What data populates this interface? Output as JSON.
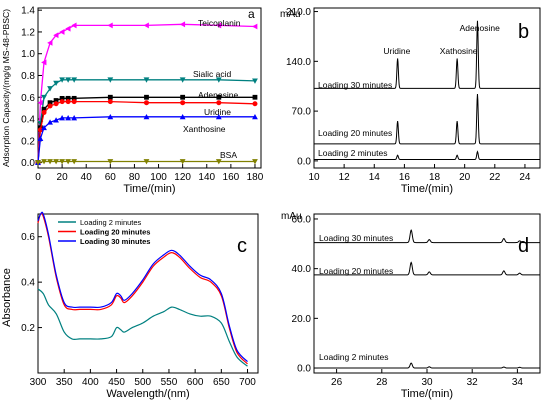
{
  "chart_data": [
    {
      "panel": "a",
      "type": "line",
      "xlabel": "Time/(min)",
      "ylabel": "Adsorption Capacity/(mg/g MS-48-PBSC)",
      "xlim": [
        0,
        185
      ],
      "ylim": [
        -0.05,
        1.42
      ],
      "xticks": [
        0,
        20,
        40,
        60,
        80,
        100,
        120,
        140,
        160,
        180
      ],
      "yticks": [
        0.0,
        0.2,
        0.4,
        0.6,
        0.8,
        1.0,
        1.2,
        1.4
      ],
      "ytick_labels": [
        "0.0",
        "0.2",
        "0.4",
        "0.6",
        "0.8",
        "1.0",
        "1.2",
        "1.4"
      ],
      "grid": false,
      "series": [
        {
          "name": "Teicoplanin",
          "color": "#ff00ff",
          "marker": "triangle-left",
          "x": [
            0,
            2,
            5,
            10,
            15,
            20,
            25,
            30,
            60,
            90,
            120,
            150,
            180
          ],
          "y": [
            0.0,
            0.55,
            0.92,
            1.1,
            1.17,
            1.2,
            1.23,
            1.26,
            1.26,
            1.26,
            1.27,
            1.26,
            1.25
          ]
        },
        {
          "name": "Sialic acid",
          "color": "#008080",
          "marker": "triangle-down",
          "x": [
            0,
            2,
            5,
            10,
            15,
            20,
            25,
            30,
            60,
            90,
            120,
            150,
            180
          ],
          "y": [
            0.0,
            0.36,
            0.6,
            0.68,
            0.73,
            0.76,
            0.76,
            0.76,
            0.76,
            0.76,
            0.76,
            0.76,
            0.75
          ]
        },
        {
          "name": "Adenosine",
          "color": "#000000",
          "marker": "square",
          "x": [
            0,
            2,
            5,
            10,
            15,
            20,
            25,
            30,
            60,
            90,
            120,
            150,
            180
          ],
          "y": [
            0.0,
            0.32,
            0.49,
            0.55,
            0.57,
            0.59,
            0.59,
            0.59,
            0.6,
            0.6,
            0.6,
            0.6,
            0.6
          ]
        },
        {
          "name": "Uridine",
          "color": "#ff0000",
          "marker": "circle",
          "x": [
            0,
            2,
            5,
            10,
            15,
            20,
            25,
            30,
            60,
            90,
            120,
            150,
            180
          ],
          "y": [
            0.0,
            0.3,
            0.46,
            0.52,
            0.54,
            0.56,
            0.56,
            0.56,
            0.56,
            0.55,
            0.55,
            0.55,
            0.54
          ]
        },
        {
          "name": "Xanthosine",
          "color": "#0000ff",
          "marker": "triangle-up",
          "x": [
            0,
            2,
            5,
            10,
            15,
            20,
            25,
            30,
            60,
            90,
            120,
            150,
            180
          ],
          "y": [
            0.0,
            0.22,
            0.32,
            0.37,
            0.39,
            0.41,
            0.41,
            0.41,
            0.42,
            0.42,
            0.42,
            0.42,
            0.42
          ]
        },
        {
          "name": "BSA",
          "color": "#808000",
          "marker": "triangle-down",
          "x": [
            0,
            5,
            10,
            15,
            20,
            25,
            30,
            60,
            90,
            120,
            150,
            180
          ],
          "y": [
            0.0,
            0.01,
            0.01,
            0.01,
            0.01,
            0.01,
            0.01,
            0.01,
            0.01,
            0.01,
            0.01,
            0.01
          ]
        }
      ]
    },
    {
      "panel": "b",
      "type": "line",
      "xlabel": "Time/(min)",
      "ylabel": "mAu",
      "xlim": [
        10,
        25
      ],
      "ylim": [
        -10,
        215
      ],
      "xticks": [
        10,
        12,
        14,
        16,
        18,
        20,
        22,
        24
      ],
      "yticks": [
        0,
        70,
        140,
        210
      ],
      "ytick_labels": [
        "0.0",
        "70.0",
        "140.0",
        "210.0"
      ],
      "grid": false,
      "peak_labels": [
        {
          "text": "Uridine",
          "x": 15.5,
          "y": 150
        },
        {
          "text": "Xathosine",
          "x": 19.6,
          "y": 150
        },
        {
          "text": "Adenosine",
          "x": 21.0,
          "y": 183
        }
      ],
      "series": [
        {
          "name": "Loading 2 minutes",
          "color": "#000000",
          "baseline": 2,
          "peaks": [
            {
              "t": 15.55,
              "h": 6
            },
            {
              "t": 19.5,
              "h": 6
            },
            {
              "t": 20.85,
              "h": 11
            }
          ]
        },
        {
          "name": "Loading 20 minutes",
          "color": "#000000",
          "baseline": 24,
          "peaks": [
            {
              "t": 15.55,
              "h": 32
            },
            {
              "t": 19.5,
              "h": 32
            },
            {
              "t": 20.85,
              "h": 70
            }
          ]
        },
        {
          "name": "Loading 30 minutes",
          "color": "#000000",
          "baseline": 102,
          "peaks": [
            {
              "t": 15.55,
              "h": 42
            },
            {
              "t": 19.5,
              "h": 42
            },
            {
              "t": 20.85,
              "h": 95
            }
          ]
        }
      ]
    },
    {
      "panel": "c",
      "type": "line",
      "xlabel": "Wavelength/(nm)",
      "ylabel": "Absorbance",
      "xlim": [
        300,
        720
      ],
      "ylim": [
        0.0,
        0.7
      ],
      "xticks": [
        300,
        350,
        400,
        450,
        500,
        550,
        600,
        650,
        700
      ],
      "yticks": [
        0.2,
        0.4,
        0.6
      ],
      "ytick_labels": [
        "0.2",
        "0.4",
        "0.6"
      ],
      "legend": "top-left",
      "grid": false,
      "series": [
        {
          "name": "Loading 2  minutes",
          "color": "#008080",
          "x": [
            300,
            310,
            320,
            335,
            350,
            365,
            380,
            400,
            420,
            440,
            450,
            458,
            465,
            480,
            500,
            520,
            540,
            555,
            570,
            590,
            610,
            630,
            650,
            665,
            680,
            700
          ],
          "y": [
            0.37,
            0.35,
            0.3,
            0.26,
            0.18,
            0.15,
            0.15,
            0.15,
            0.15,
            0.16,
            0.2,
            0.19,
            0.18,
            0.2,
            0.22,
            0.25,
            0.27,
            0.29,
            0.28,
            0.26,
            0.25,
            0.25,
            0.22,
            0.14,
            0.07,
            0.03
          ]
        },
        {
          "name": "Loading 20 minutes",
          "color": "#ff0000",
          "x": [
            300,
            305,
            310,
            320,
            335,
            350,
            365,
            380,
            400,
            420,
            440,
            450,
            458,
            465,
            480,
            500,
            520,
            540,
            555,
            570,
            590,
            610,
            630,
            650,
            665,
            680,
            700
          ],
          "y": [
            0.66,
            0.7,
            0.69,
            0.6,
            0.42,
            0.3,
            0.28,
            0.28,
            0.28,
            0.28,
            0.3,
            0.34,
            0.33,
            0.31,
            0.34,
            0.4,
            0.47,
            0.51,
            0.53,
            0.51,
            0.46,
            0.42,
            0.4,
            0.34,
            0.2,
            0.09,
            0.04
          ]
        },
        {
          "name": "Loading 30 minutes",
          "color": "#0000ff",
          "x": [
            300,
            305,
            310,
            320,
            335,
            350,
            365,
            380,
            400,
            420,
            440,
            450,
            458,
            465,
            480,
            500,
            520,
            540,
            555,
            570,
            590,
            610,
            630,
            650,
            665,
            680,
            700
          ],
          "y": [
            0.67,
            0.7,
            0.7,
            0.61,
            0.43,
            0.31,
            0.29,
            0.29,
            0.29,
            0.29,
            0.31,
            0.35,
            0.34,
            0.32,
            0.35,
            0.41,
            0.48,
            0.52,
            0.54,
            0.52,
            0.47,
            0.43,
            0.41,
            0.35,
            0.21,
            0.1,
            0.05
          ]
        }
      ]
    },
    {
      "panel": "d",
      "type": "line",
      "xlabel": "Time/(min)",
      "ylabel": "mAu",
      "xlim": [
        25,
        35
      ],
      "ylim": [
        -2,
        62
      ],
      "xticks": [
        26,
        28,
        30,
        32,
        34
      ],
      "yticks": [
        0,
        20,
        40,
        60
      ],
      "ytick_labels": [
        "0.0",
        "20.0",
        "40.0",
        "60.0"
      ],
      "grid": false,
      "series": [
        {
          "name": "Loading 2 minutes",
          "color": "#000000",
          "baseline": 0,
          "peaks": [
            {
              "t": 29.3,
              "h": 2
            },
            {
              "t": 30.1,
              "h": 0.5
            },
            {
              "t": 33.4,
              "h": 0.4
            },
            {
              "t": 34.1,
              "h": 0.3
            }
          ]
        },
        {
          "name": "Loading 20 minutes",
          "color": "#000000",
          "baseline": 37.5,
          "peaks": [
            {
              "t": 29.3,
              "h": 5
            },
            {
              "t": 30.1,
              "h": 1.2
            },
            {
              "t": 33.4,
              "h": 1.6
            },
            {
              "t": 34.1,
              "h": 0.7
            }
          ]
        },
        {
          "name": "Loading 30 minutes",
          "color": "#000000",
          "baseline": 50.5,
          "peaks": [
            {
              "t": 29.3,
              "h": 5
            },
            {
              "t": 30.1,
              "h": 1.2
            },
            {
              "t": 33.4,
              "h": 1.6
            },
            {
              "t": 34.1,
              "h": 0.7
            }
          ]
        }
      ]
    }
  ]
}
